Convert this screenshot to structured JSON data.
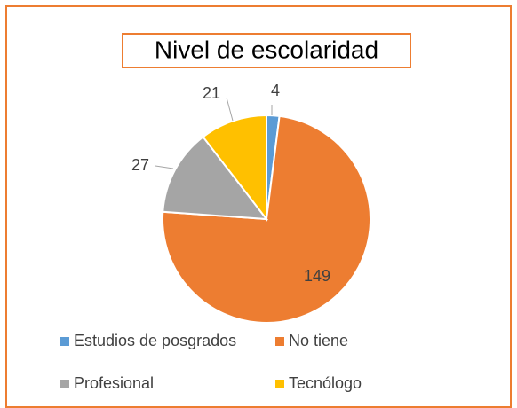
{
  "chart_data": {
    "type": "pie",
    "title": "Nivel de escolaridad",
    "categories": [
      "Estudios de posgrados",
      "No tiene",
      "Profesional",
      "Tecnólogo"
    ],
    "values": [
      4,
      149,
      27,
      21
    ],
    "colors": [
      "#5b9bd5",
      "#ed7d31",
      "#a5a5a5",
      "#ffc000"
    ]
  }
}
